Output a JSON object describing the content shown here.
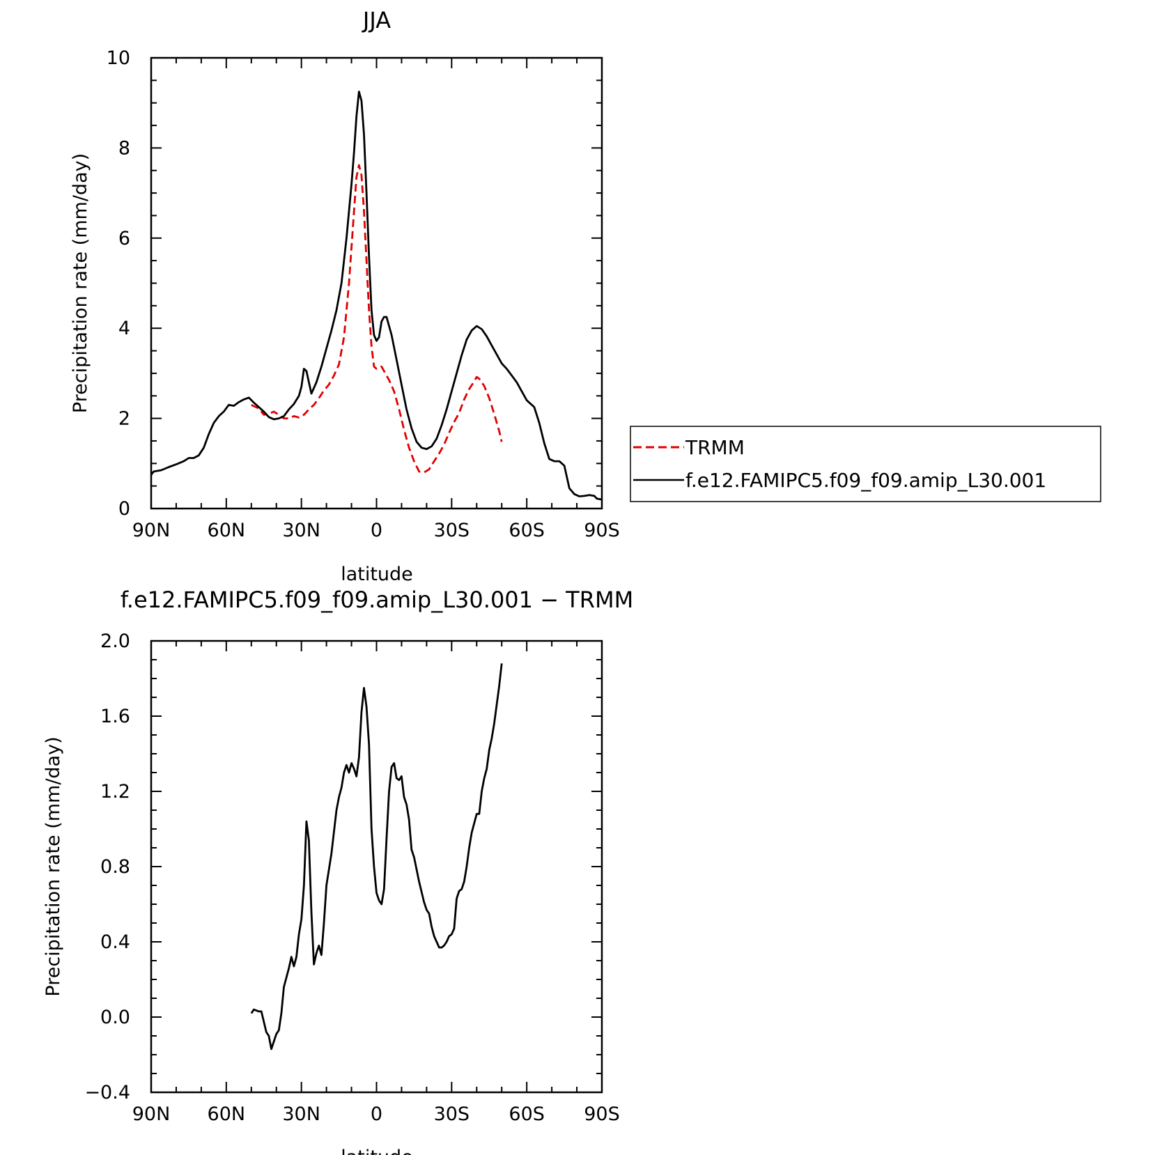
{
  "colors": {
    "trmm": "#e00000",
    "model": "#000000",
    "axis": "#000000"
  },
  "chart_data": [
    {
      "type": "line",
      "title": "JJA",
      "xlabel": "latitude",
      "ylabel": "Precipitation rate (mm/day)",
      "xlim": [
        -90,
        90
      ],
      "ylim": [
        0,
        10
      ],
      "x_ticks": [
        {
          "value": -90,
          "label": "90N"
        },
        {
          "value": -60,
          "label": "60N"
        },
        {
          "value": -30,
          "label": "30N"
        },
        {
          "value": 0,
          "label": "0"
        },
        {
          "value": 30,
          "label": "30S"
        },
        {
          "value": 60,
          "label": "60S"
        },
        {
          "value": 90,
          "label": "90S"
        }
      ],
      "y_ticks": [
        {
          "value": 0,
          "label": "0"
        },
        {
          "value": 2,
          "label": "2"
        },
        {
          "value": 4,
          "label": "4"
        },
        {
          "value": 6,
          "label": "6"
        },
        {
          "value": 8,
          "label": "8"
        },
        {
          "value": 10,
          "label": "10"
        }
      ],
      "legend": {
        "placement": "right"
      },
      "series": [
        {
          "name": "TRMM",
          "style": "dashed",
          "points": [
            [
              -50,
              2.3
            ],
            [
              -47,
              2.22
            ],
            [
              -45,
              2.08
            ],
            [
              -43,
              2.1
            ],
            [
              -41,
              2.15
            ],
            [
              -39,
              2.08
            ],
            [
              -37,
              2.0
            ],
            [
              -35,
              2.0
            ],
            [
              -33,
              2.05
            ],
            [
              -31,
              2.02
            ],
            [
              -29,
              2.08
            ],
            [
              -27,
              2.2
            ],
            [
              -25,
              2.3
            ],
            [
              -23,
              2.45
            ],
            [
              -21,
              2.62
            ],
            [
              -19,
              2.75
            ],
            [
              -17,
              2.95
            ],
            [
              -15,
              3.2
            ],
            [
              -13,
              3.8
            ],
            [
              -11,
              5.0
            ],
            [
              -9,
              6.6
            ],
            [
              -8,
              7.35
            ],
            [
              -7,
              7.62
            ],
            [
              -6,
              7.4
            ],
            [
              -5,
              6.6
            ],
            [
              -4,
              5.5
            ],
            [
              -3,
              4.4
            ],
            [
              -2,
              3.6
            ],
            [
              -1,
              3.15
            ],
            [
              0,
              3.1
            ],
            [
              1,
              3.12
            ],
            [
              2,
              3.15
            ],
            [
              3,
              3.05
            ],
            [
              5,
              2.85
            ],
            [
              7,
              2.6
            ],
            [
              9,
              2.2
            ],
            [
              11,
              1.75
            ],
            [
              13,
              1.35
            ],
            [
              15,
              1.05
            ],
            [
              17,
              0.82
            ],
            [
              19,
              0.8
            ],
            [
              21,
              0.87
            ],
            [
              23,
              1.05
            ],
            [
              25,
              1.22
            ],
            [
              27,
              1.42
            ],
            [
              29,
              1.68
            ],
            [
              31,
              1.92
            ],
            [
              33,
              2.12
            ],
            [
              35,
              2.42
            ],
            [
              37,
              2.65
            ],
            [
              39,
              2.82
            ],
            [
              40,
              2.92
            ],
            [
              41,
              2.88
            ],
            [
              43,
              2.72
            ],
            [
              45,
              2.45
            ],
            [
              47,
              2.1
            ],
            [
              49,
              1.72
            ],
            [
              50,
              1.48
            ]
          ]
        },
        {
          "name": "f.e12.FAMIPC5.f09_f09.amip_L30.001",
          "style": "solid",
          "points": [
            [
              -90,
              0.75
            ],
            [
              -89,
              0.82
            ],
            [
              -86,
              0.85
            ],
            [
              -83,
              0.92
            ],
            [
              -80,
              0.98
            ],
            [
              -77,
              1.05
            ],
            [
              -75,
              1.12
            ],
            [
              -73,
              1.12
            ],
            [
              -71,
              1.18
            ],
            [
              -69,
              1.35
            ],
            [
              -67,
              1.65
            ],
            [
              -65,
              1.9
            ],
            [
              -63,
              2.05
            ],
            [
              -61,
              2.15
            ],
            [
              -59,
              2.3
            ],
            [
              -57,
              2.28
            ],
            [
              -55,
              2.36
            ],
            [
              -53,
              2.42
            ],
            [
              -51,
              2.46
            ],
            [
              -49,
              2.35
            ],
            [
              -47,
              2.25
            ],
            [
              -45,
              2.15
            ],
            [
              -43,
              2.03
            ],
            [
              -41,
              1.98
            ],
            [
              -39,
              2.0
            ],
            [
              -37,
              2.05
            ],
            [
              -35,
              2.2
            ],
            [
              -33,
              2.32
            ],
            [
              -31,
              2.5
            ],
            [
              -30,
              2.7
            ],
            [
              -29,
              3.1
            ],
            [
              -28,
              3.05
            ],
            [
              -26,
              2.55
            ],
            [
              -24,
              2.8
            ],
            [
              -22,
              3.15
            ],
            [
              -20,
              3.55
            ],
            [
              -18,
              3.95
            ],
            [
              -16,
              4.4
            ],
            [
              -14,
              5.0
            ],
            [
              -12,
              6.0
            ],
            [
              -10,
              7.2
            ],
            [
              -9,
              7.9
            ],
            [
              -8,
              8.7
            ],
            [
              -7,
              9.25
            ],
            [
              -6,
              9.05
            ],
            [
              -5,
              8.3
            ],
            [
              -4,
              7.0
            ],
            [
              -3,
              5.6
            ],
            [
              -2,
              4.4
            ],
            [
              -1,
              3.85
            ],
            [
              0,
              3.72
            ],
            [
              1,
              3.8
            ],
            [
              2,
              4.15
            ],
            [
              3,
              4.25
            ],
            [
              4,
              4.25
            ],
            [
              6,
              3.85
            ],
            [
              8,
              3.3
            ],
            [
              10,
              2.75
            ],
            [
              12,
              2.2
            ],
            [
              14,
              1.78
            ],
            [
              16,
              1.48
            ],
            [
              18,
              1.35
            ],
            [
              20,
              1.32
            ],
            [
              22,
              1.38
            ],
            [
              24,
              1.55
            ],
            [
              26,
              1.85
            ],
            [
              28,
              2.2
            ],
            [
              30,
              2.6
            ],
            [
              32,
              3.0
            ],
            [
              34,
              3.4
            ],
            [
              36,
              3.75
            ],
            [
              38,
              3.95
            ],
            [
              40,
              4.05
            ],
            [
              42,
              3.98
            ],
            [
              44,
              3.82
            ],
            [
              46,
              3.62
            ],
            [
              48,
              3.42
            ],
            [
              50,
              3.22
            ],
            [
              52,
              3.1
            ],
            [
              54,
              2.95
            ],
            [
              56,
              2.8
            ],
            [
              58,
              2.6
            ],
            [
              60,
              2.4
            ],
            [
              62,
              2.3
            ],
            [
              63,
              2.25
            ],
            [
              65,
              1.9
            ],
            [
              67,
              1.45
            ],
            [
              69,
              1.1
            ],
            [
              71,
              1.05
            ],
            [
              73,
              1.05
            ],
            [
              75,
              0.95
            ],
            [
              77,
              0.45
            ],
            [
              79,
              0.32
            ],
            [
              81,
              0.27
            ],
            [
              83,
              0.28
            ],
            [
              85,
              0.3
            ],
            [
              87,
              0.28
            ],
            [
              88,
              0.22
            ],
            [
              90,
              0.2
            ]
          ]
        }
      ]
    },
    {
      "type": "line",
      "title": "f.e12.FAMIPC5.f09_f09.amip_L30.001 − TRMM",
      "xlabel": "latitude",
      "ylabel": "Precipitation rate (mm/day)",
      "xlim": [
        -90,
        90
      ],
      "ylim": [
        -0.4,
        2.0
      ],
      "x_ticks": [
        {
          "value": -90,
          "label": "90N"
        },
        {
          "value": -60,
          "label": "60N"
        },
        {
          "value": -30,
          "label": "30N"
        },
        {
          "value": 0,
          "label": "0"
        },
        {
          "value": 30,
          "label": "30S"
        },
        {
          "value": 60,
          "label": "60S"
        },
        {
          "value": 90,
          "label": "90S"
        }
      ],
      "y_ticks": [
        {
          "value": -0.4,
          "label": "−0.4"
        },
        {
          "value": 0.0,
          "label": "0.0"
        },
        {
          "value": 0.4,
          "label": "0.4"
        },
        {
          "value": 0.8,
          "label": "0.8"
        },
        {
          "value": 1.2,
          "label": "1.2"
        },
        {
          "value": 1.6,
          "label": "1.6"
        },
        {
          "value": 2.0,
          "label": "2.0"
        }
      ],
      "series": [
        {
          "style": "solid",
          "points": [
            [
              -50,
              0.02
            ],
            [
              -49,
              0.04
            ],
            [
              -47,
              0.03
            ],
            [
              -46,
              0.03
            ],
            [
              -44,
              -0.08
            ],
            [
              -43,
              -0.1
            ],
            [
              -42,
              -0.17
            ],
            [
              -41,
              -0.13
            ],
            [
              -40,
              -0.09
            ],
            [
              -39,
              -0.07
            ],
            [
              -38,
              0.02
            ],
            [
              -37,
              0.16
            ],
            [
              -35,
              0.26
            ],
            [
              -34,
              0.32
            ],
            [
              -33,
              0.27
            ],
            [
              -32,
              0.32
            ],
            [
              -31,
              0.44
            ],
            [
              -30,
              0.52
            ],
            [
              -29,
              0.7
            ],
            [
              -28,
              1.04
            ],
            [
              -27,
              0.94
            ],
            [
              -26,
              0.56
            ],
            [
              -25,
              0.28
            ],
            [
              -24,
              0.34
            ],
            [
              -23,
              0.38
            ],
            [
              -22,
              0.33
            ],
            [
              -21,
              0.5
            ],
            [
              -20,
              0.7
            ],
            [
              -18,
              0.87
            ],
            [
              -16,
              1.1
            ],
            [
              -15,
              1.17
            ],
            [
              -14,
              1.22
            ],
            [
              -13,
              1.3
            ],
            [
              -12,
              1.34
            ],
            [
              -11,
              1.3
            ],
            [
              -10,
              1.35
            ],
            [
              -9,
              1.32
            ],
            [
              -8,
              1.28
            ],
            [
              -7,
              1.38
            ],
            [
              -6,
              1.62
            ],
            [
              -5,
              1.75
            ],
            [
              -4,
              1.65
            ],
            [
              -3,
              1.45
            ],
            [
              -2,
              1.0
            ],
            [
              -1,
              0.8
            ],
            [
              0,
              0.66
            ],
            [
              1,
              0.62
            ],
            [
              2,
              0.6
            ],
            [
              3,
              0.68
            ],
            [
              4,
              0.95
            ],
            [
              5,
              1.2
            ],
            [
              6,
              1.33
            ],
            [
              7,
              1.35
            ],
            [
              8,
              1.27
            ],
            [
              9,
              1.26
            ],
            [
              10,
              1.28
            ],
            [
              11,
              1.17
            ],
            [
              12,
              1.13
            ],
            [
              13,
              1.05
            ],
            [
              14,
              0.89
            ],
            [
              15,
              0.85
            ],
            [
              17,
              0.72
            ],
            [
              19,
              0.61
            ],
            [
              20,
              0.57
            ],
            [
              21,
              0.55
            ],
            [
              22,
              0.48
            ],
            [
              23,
              0.43
            ],
            [
              24,
              0.4
            ],
            [
              25,
              0.37
            ],
            [
              26,
              0.37
            ],
            [
              27,
              0.38
            ],
            [
              28,
              0.4
            ],
            [
              29,
              0.43
            ],
            [
              30,
              0.44
            ],
            [
              31,
              0.47
            ],
            [
              32,
              0.63
            ],
            [
              33,
              0.67
            ],
            [
              34,
              0.68
            ],
            [
              35,
              0.72
            ],
            [
              36,
              0.8
            ],
            [
              37,
              0.9
            ],
            [
              38,
              0.98
            ],
            [
              39,
              1.03
            ],
            [
              40,
              1.08
            ],
            [
              41,
              1.08
            ],
            [
              42,
              1.2
            ],
            [
              43,
              1.27
            ],
            [
              44,
              1.32
            ],
            [
              45,
              1.42
            ],
            [
              46,
              1.48
            ],
            [
              47,
              1.56
            ],
            [
              48,
              1.66
            ],
            [
              49,
              1.76
            ],
            [
              50,
              1.88
            ]
          ]
        }
      ]
    }
  ]
}
